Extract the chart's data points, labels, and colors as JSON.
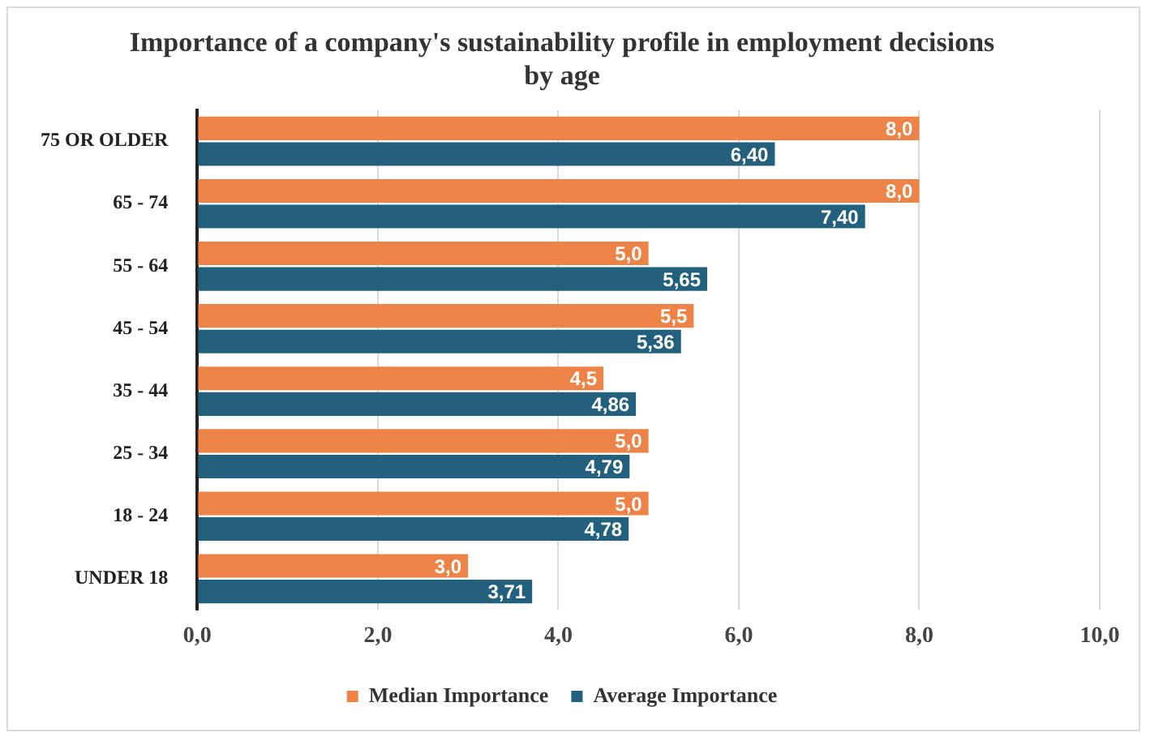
{
  "chart_data": {
    "type": "bar",
    "orientation": "horizontal",
    "title": "Importance of a company's sustainability profile in employment decisions by age",
    "categories": [
      "75 OR OLDER",
      "65 - 74",
      "55 - 64",
      "45 - 54",
      "35 - 44",
      "25 - 34",
      "18 - 24",
      "UNDER 18"
    ],
    "series": [
      {
        "name": "Median Importance",
        "color": "#ed8347",
        "values": [
          8.0,
          8.0,
          5.0,
          5.5,
          4.5,
          5.0,
          5.0,
          3.0
        ],
        "value_labels": [
          "8,0",
          "8,0",
          "5,0",
          "5,5",
          "4,5",
          "5,0",
          "5,0",
          "3,0"
        ]
      },
      {
        "name": "Average Importance",
        "color": "#23607e",
        "values": [
          6.4,
          7.4,
          5.65,
          5.36,
          4.86,
          4.79,
          4.78,
          3.71
        ],
        "value_labels": [
          "6,40",
          "7,40",
          "5,65",
          "5,36",
          "4,86",
          "4,79",
          "4,78",
          "3,71"
        ]
      }
    ],
    "xlim": [
      0,
      10
    ],
    "xticks": [
      {
        "value": 0,
        "label": "0,0"
      },
      {
        "value": 2,
        "label": "2,0"
      },
      {
        "value": 4,
        "label": "4,0"
      },
      {
        "value": 6,
        "label": "6,0"
      },
      {
        "value": 8,
        "label": "8,0"
      },
      {
        "value": 10,
        "label": "10,0"
      }
    ],
    "grid": "x",
    "legend": "bottom"
  }
}
